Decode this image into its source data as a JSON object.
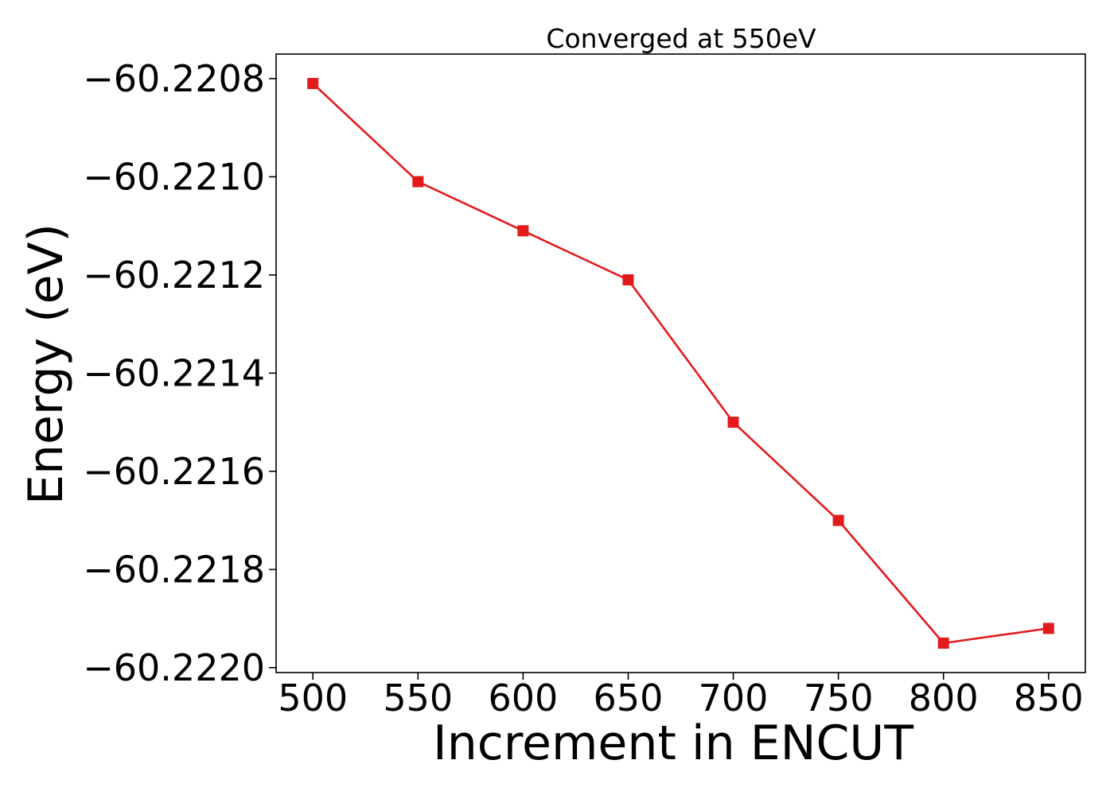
{
  "chart_data": {
    "type": "line",
    "title": "Converged at 550eV",
    "xlabel": "Increment in ENCUT",
    "ylabel": "Energy (eV)",
    "x": [
      500,
      550,
      600,
      650,
      700,
      750,
      800,
      850
    ],
    "series": [
      {
        "values": [
          -60.22081,
          -60.22101,
          -60.22111,
          -60.22121,
          -60.2215,
          -60.2217,
          -60.22195,
          -60.22192
        ],
        "color": "#e31a1c",
        "marker": "square"
      }
    ],
    "xticks": [
      500,
      550,
      600,
      650,
      700,
      750,
      800,
      850
    ],
    "xtick_labels": [
      "500",
      "550",
      "600",
      "650",
      "700",
      "750",
      "800",
      "850"
    ],
    "yticks": [
      -60.2208,
      -60.221,
      -60.2212,
      -60.2214,
      -60.2216,
      -60.2218,
      -60.222
    ],
    "ytick_labels": [
      "−60.2208",
      "−60.2210",
      "−60.2212",
      "−60.2214",
      "−60.2216",
      "−60.2218",
      "−60.2220"
    ],
    "xlim": [
      482.5,
      867.5
    ],
    "ylim": [
      -60.22201,
      -60.22075
    ],
    "grid": false,
    "legend": "none"
  }
}
